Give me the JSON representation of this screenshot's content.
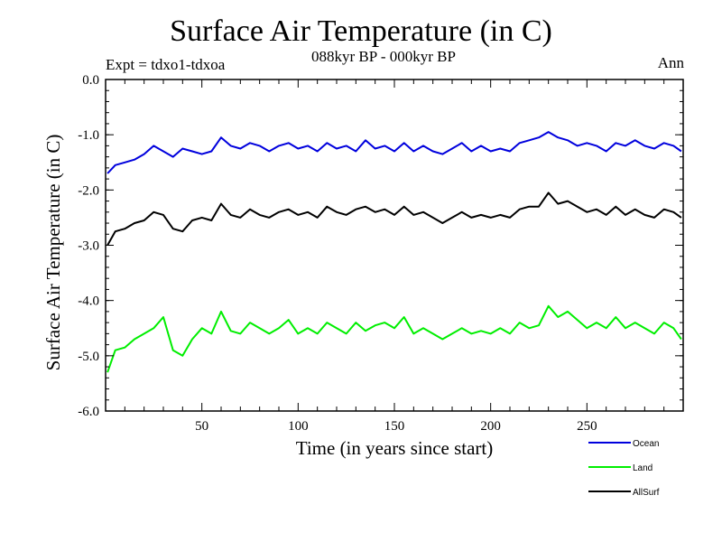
{
  "header": {
    "title": "Surface Air Temperature (in C)",
    "subtitle": "088kyr BP - 000kyr BP",
    "expt": "Expt = tdxo1-tdxoa",
    "season": "Ann"
  },
  "chart_data": {
    "type": "line",
    "xlabel": "Time (in years since start)",
    "ylabel": "Surface Air Temperature (in C)",
    "xlim": [
      0,
      300
    ],
    "ylim": [
      -6.0,
      0.0
    ],
    "xticks": [
      50,
      100,
      150,
      200,
      250
    ],
    "xtick_labels": [
      "50",
      "100",
      "150",
      "200",
      "250"
    ],
    "yticks": [
      0.0,
      -1.0,
      -2.0,
      -3.0,
      -4.0,
      -5.0,
      -6.0
    ],
    "ytick_labels": [
      "0.0",
      "-1.0",
      "-2.0",
      "-3.0",
      "-4.0",
      "-5.0",
      "-6.0"
    ],
    "grid": false,
    "legend_position": "bottom-right",
    "series": [
      {
        "name": "Ocean",
        "color": "#0000dd",
        "x": [
          1,
          5,
          10,
          15,
          20,
          25,
          30,
          35,
          40,
          45,
          50,
          55,
          60,
          65,
          70,
          75,
          80,
          85,
          90,
          95,
          100,
          105,
          110,
          115,
          120,
          125,
          130,
          135,
          140,
          145,
          150,
          155,
          160,
          165,
          170,
          175,
          180,
          185,
          190,
          195,
          200,
          205,
          210,
          215,
          220,
          225,
          230,
          235,
          240,
          245,
          250,
          255,
          260,
          265,
          270,
          275,
          280,
          285,
          290,
          295,
          299
        ],
        "values": [
          -1.7,
          -1.55,
          -1.5,
          -1.45,
          -1.35,
          -1.2,
          -1.3,
          -1.4,
          -1.25,
          -1.3,
          -1.35,
          -1.3,
          -1.05,
          -1.2,
          -1.25,
          -1.15,
          -1.2,
          -1.3,
          -1.2,
          -1.15,
          -1.25,
          -1.2,
          -1.3,
          -1.15,
          -1.25,
          -1.2,
          -1.3,
          -1.1,
          -1.25,
          -1.2,
          -1.3,
          -1.15,
          -1.3,
          -1.2,
          -1.3,
          -1.35,
          -1.25,
          -1.15,
          -1.3,
          -1.2,
          -1.3,
          -1.25,
          -1.3,
          -1.15,
          -1.1,
          -1.05,
          -0.95,
          -1.05,
          -1.1,
          -1.2,
          -1.15,
          -1.2,
          -1.3,
          -1.15,
          -1.2,
          -1.1,
          -1.2,
          -1.25,
          -1.15,
          -1.2,
          -1.3
        ]
      },
      {
        "name": "Land",
        "color": "#00ee00",
        "x": [
          1,
          5,
          10,
          15,
          20,
          25,
          30,
          35,
          40,
          45,
          50,
          55,
          60,
          65,
          70,
          75,
          80,
          85,
          90,
          95,
          100,
          105,
          110,
          115,
          120,
          125,
          130,
          135,
          140,
          145,
          150,
          155,
          160,
          165,
          170,
          175,
          180,
          185,
          190,
          195,
          200,
          205,
          210,
          215,
          220,
          225,
          230,
          235,
          240,
          245,
          250,
          255,
          260,
          265,
          270,
          275,
          280,
          285,
          290,
          295,
          299
        ],
        "values": [
          -5.3,
          -4.9,
          -4.85,
          -4.7,
          -4.6,
          -4.5,
          -4.3,
          -4.9,
          -5.0,
          -4.7,
          -4.5,
          -4.6,
          -4.2,
          -4.55,
          -4.6,
          -4.4,
          -4.5,
          -4.6,
          -4.5,
          -4.35,
          -4.6,
          -4.5,
          -4.6,
          -4.4,
          -4.5,
          -4.6,
          -4.4,
          -4.55,
          -4.45,
          -4.4,
          -4.5,
          -4.3,
          -4.6,
          -4.5,
          -4.6,
          -4.7,
          -4.6,
          -4.5,
          -4.6,
          -4.55,
          -4.6,
          -4.5,
          -4.6,
          -4.4,
          -4.5,
          -4.45,
          -4.1,
          -4.3,
          -4.2,
          -4.35,
          -4.5,
          -4.4,
          -4.5,
          -4.3,
          -4.5,
          -4.4,
          -4.5,
          -4.6,
          -4.4,
          -4.5,
          -4.7
        ]
      },
      {
        "name": "AllSurf",
        "color": "#000000",
        "x": [
          1,
          5,
          10,
          15,
          20,
          25,
          30,
          35,
          40,
          45,
          50,
          55,
          60,
          65,
          70,
          75,
          80,
          85,
          90,
          95,
          100,
          105,
          110,
          115,
          120,
          125,
          130,
          135,
          140,
          145,
          150,
          155,
          160,
          165,
          170,
          175,
          180,
          185,
          190,
          195,
          200,
          205,
          210,
          215,
          220,
          225,
          230,
          235,
          240,
          245,
          250,
          255,
          260,
          265,
          270,
          275,
          280,
          285,
          290,
          295,
          299
        ],
        "values": [
          -3.0,
          -2.75,
          -2.7,
          -2.6,
          -2.55,
          -2.4,
          -2.45,
          -2.7,
          -2.75,
          -2.55,
          -2.5,
          -2.55,
          -2.25,
          -2.45,
          -2.5,
          -2.35,
          -2.45,
          -2.5,
          -2.4,
          -2.35,
          -2.45,
          -2.4,
          -2.5,
          -2.3,
          -2.4,
          -2.45,
          -2.35,
          -2.3,
          -2.4,
          -2.35,
          -2.45,
          -2.3,
          -2.45,
          -2.4,
          -2.5,
          -2.6,
          -2.5,
          -2.4,
          -2.5,
          -2.45,
          -2.5,
          -2.45,
          -2.5,
          -2.35,
          -2.3,
          -2.3,
          -2.05,
          -2.25,
          -2.2,
          -2.3,
          -2.4,
          -2.35,
          -2.45,
          -2.3,
          -2.45,
          -2.35,
          -2.45,
          -2.5,
          -2.35,
          -2.4,
          -2.5
        ]
      }
    ]
  }
}
